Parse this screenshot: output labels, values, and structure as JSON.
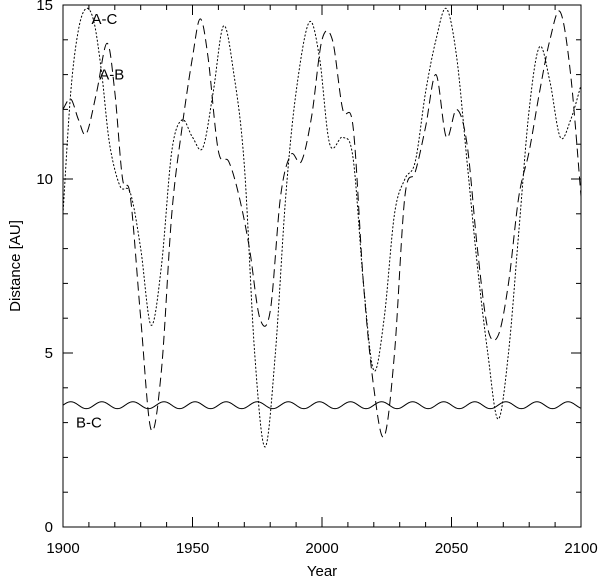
{
  "chart_data": {
    "type": "line",
    "title": "",
    "xlabel": "Year",
    "ylabel": "Distance [AU]",
    "xlim": [
      1900,
      2100
    ],
    "ylim": [
      0,
      15
    ],
    "xticks": [
      1900,
      1950,
      2000,
      2050,
      2100
    ],
    "yticks": [
      0,
      5,
      10,
      15
    ],
    "grid": false,
    "legend": "none",
    "series": [
      {
        "name": "A-C",
        "style": "dotted",
        "color": "#000000",
        "label_at": [
          1911,
          14.6
        ],
        "x": [
          1900,
          1903,
          1906,
          1909,
          1912,
          1915,
          1918,
          1922,
          1926,
          1930,
          1934,
          1938,
          1942,
          1946,
          1950,
          1954,
          1958,
          1962,
          1966,
          1970,
          1974,
          1978,
          1982,
          1986,
          1990,
          1995,
          1999,
          2003,
          2008,
          2012,
          2016,
          2020,
          2024,
          2028,
          2032,
          2036,
          2040,
          2044,
          2048,
          2052,
          2056,
          2060,
          2064,
          2068,
          2072,
          2076,
          2080,
          2084,
          2088,
          2092,
          2096,
          2100
        ],
        "y": [
          9.0,
          12.5,
          14.3,
          14.9,
          14.5,
          13.0,
          11.0,
          9.8,
          9.6,
          8.0,
          5.8,
          7.5,
          10.8,
          11.7,
          11.2,
          10.9,
          12.5,
          14.4,
          13.0,
          10.4,
          5.0,
          2.3,
          5.0,
          9.5,
          12.5,
          14.5,
          13.5,
          11.0,
          11.2,
          10.6,
          7.0,
          4.5,
          6.0,
          9.0,
          10.0,
          10.5,
          12.5,
          14.0,
          14.9,
          13.5,
          10.5,
          7.5,
          5.0,
          3.1,
          5.0,
          8.5,
          12.0,
          13.8,
          12.8,
          11.2,
          11.7,
          12.7
        ]
      },
      {
        "name": "A-B",
        "style": "dashed",
        "color": "#000000",
        "label_at": [
          1914,
          13.0
        ],
        "x": [
          1900,
          1903,
          1906,
          1909,
          1913,
          1917,
          1920,
          1923,
          1926,
          1930,
          1934,
          1938,
          1942,
          1946,
          1950,
          1953,
          1956,
          1960,
          1964,
          1968,
          1972,
          1976,
          1980,
          1984,
          1988,
          1992,
          1996,
          2000,
          2004,
          2008,
          2012,
          2016,
          2020,
          2024,
          2028,
          2032,
          2036,
          2040,
          2044,
          2048,
          2052,
          2056,
          2060,
          2064,
          2068,
          2072,
          2076,
          2080,
          2084,
          2088,
          2092,
          2096,
          2100
        ],
        "y": [
          12.0,
          12.3,
          11.7,
          11.3,
          12.5,
          13.9,
          12.5,
          10.0,
          9.5,
          6.0,
          2.8,
          4.5,
          9.0,
          11.5,
          13.5,
          14.6,
          13.5,
          10.8,
          10.5,
          9.5,
          8.0,
          6.0,
          6.2,
          9.5,
          10.7,
          10.5,
          11.8,
          14.0,
          14.0,
          12.0,
          11.5,
          7.0,
          4.0,
          2.6,
          5.0,
          9.5,
          10.2,
          11.5,
          13.0,
          11.2,
          12.0,
          11.0,
          8.0,
          5.7,
          5.5,
          7.0,
          9.5,
          10.8,
          12.5,
          14.0,
          14.8,
          13.0,
          9.5
        ]
      },
      {
        "name": "B-C",
        "style": "solid",
        "color": "#000000",
        "label_at": [
          1905,
          3.0
        ],
        "model": "sine",
        "mean": 3.5,
        "amplitude": 0.1,
        "period_years": 12,
        "x": [
          1900,
          2100
        ],
        "y": [
          3.5,
          3.5
        ]
      }
    ]
  }
}
